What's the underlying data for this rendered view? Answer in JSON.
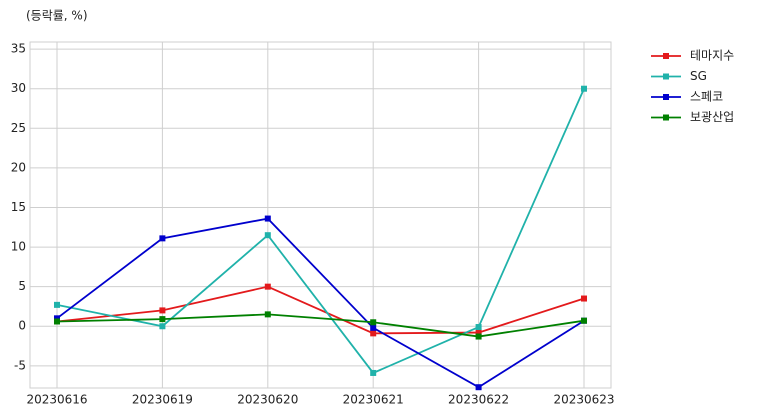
{
  "chart_data": {
    "type": "line",
    "title": "(등락률, %)",
    "categories": [
      "20230616",
      "20230619",
      "20230620",
      "20230621",
      "20230622",
      "20230623"
    ],
    "series": [
      {
        "name": "테마지수",
        "color": "#e31a1c",
        "values": [
          0.6,
          2.0,
          5.0,
          -0.9,
          -0.8,
          3.5
        ]
      },
      {
        "name": "SG",
        "color": "#20b2aa",
        "values": [
          2.7,
          0.0,
          11.5,
          -5.9,
          -0.1,
          30.0
        ]
      },
      {
        "name": "스페코",
        "color": "#0000cd",
        "values": [
          1.0,
          11.1,
          13.6,
          -0.2,
          -7.7,
          0.7
        ]
      },
      {
        "name": "보광산업",
        "color": "#008000",
        "values": [
          0.6,
          0.9,
          1.5,
          0.5,
          -1.3,
          0.7
        ]
      }
    ],
    "ylim": [
      -7.8,
      35.9
    ],
    "yticks": [
      -5,
      0,
      5,
      10,
      15,
      20,
      25,
      30,
      35
    ],
    "grid": true,
    "legend": "outside-right"
  }
}
